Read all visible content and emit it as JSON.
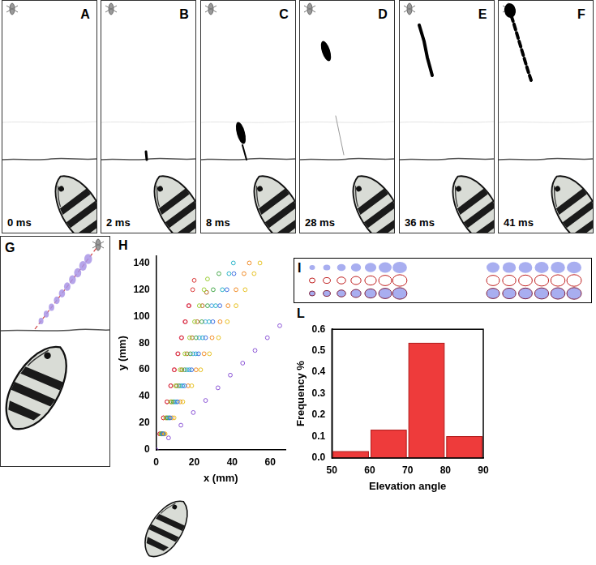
{
  "figure": {
    "frames": [
      {
        "label": "A",
        "time": "0 ms"
      },
      {
        "label": "B",
        "time": "2 ms"
      },
      {
        "label": "C",
        "time": "8 ms"
      },
      {
        "label": "D",
        "time": "28 ms"
      },
      {
        "label": "E",
        "time": "36 ms"
      },
      {
        "label": "F",
        "time": "41 ms"
      }
    ],
    "panel_G": {
      "label": "G"
    },
    "panel_I": {
      "label": "I"
    }
  },
  "chart_data": [
    {
      "type": "scatter",
      "panel_label": "H",
      "x_label": "x (mm)",
      "y_label": "y (mm)",
      "xlim": [
        0,
        68
      ],
      "xticks": [
        0,
        20,
        40,
        60
      ],
      "ylim": [
        0,
        145
      ],
      "yticks": [
        0,
        20,
        40,
        60,
        80,
        100,
        120,
        140
      ],
      "grid": false,
      "marker": "open_circle",
      "series": [
        {
          "color": "#8b55d6",
          "x": [
            0,
            6.5,
            13,
            19.5,
            26,
            32.5,
            39,
            45.5,
            52,
            58.5,
            65
          ],
          "values": [
            0,
            9,
            18.5,
            28,
            37,
            46.5,
            56,
            65,
            74.5,
            84,
            93
          ]
        },
        {
          "color": "#3d6ee0",
          "x": [
            3.7,
            7.4,
            11.2,
            14.9,
            18.6,
            22.3,
            26,
            29.8,
            33.5,
            37.2,
            40.9
          ],
          "values": [
            12,
            24,
            36,
            48,
            60,
            72,
            84,
            96,
            108,
            120,
            132
          ]
        },
        {
          "color": "#e6c020",
          "x": [
            4.7,
            9.4,
            14,
            18.7,
            23.4,
            28,
            32.8,
            37.4,
            42,
            46.8,
            51.5,
            54.6
          ],
          "values": [
            12,
            24,
            36,
            48,
            60,
            72,
            84,
            96,
            108,
            120,
            132,
            140
          ]
        },
        {
          "color": "#f08a24",
          "x": [
            4.2,
            8.4,
            12.6,
            16.8,
            21,
            25.2,
            29.4,
            33.6,
            37.8,
            42,
            46.2,
            49
          ],
          "values": [
            12,
            24,
            36,
            48,
            60,
            72,
            84,
            96,
            108,
            120,
            132,
            140
          ]
        },
        {
          "color": "#27b3c8",
          "x": [
            3.5,
            7,
            10.4,
            13.9,
            17.4,
            20.9,
            24.4,
            27.8,
            31.3,
            34.8,
            38.3,
            40.6
          ],
          "values": [
            12,
            24,
            36,
            48,
            60,
            72,
            84,
            96,
            108,
            120,
            132,
            140
          ]
        },
        {
          "color": "#46a84a",
          "x": [
            3,
            6,
            9,
            12,
            15,
            18,
            21,
            24,
            27,
            30,
            33
          ],
          "values": [
            12,
            24,
            36,
            48,
            60,
            72,
            84,
            96,
            108,
            120,
            132
          ]
        },
        {
          "color": "#9acd32",
          "x": [
            2.5,
            5,
            7.6,
            10.1,
            12.6,
            15.1,
            17.6,
            20.2,
            22.7,
            25.2,
            27
          ],
          "values": [
            12,
            24,
            36,
            48,
            60,
            72,
            84,
            96,
            108,
            120,
            128
          ]
        },
        {
          "color": "#d93636",
          "x": [
            1.9,
            3.8,
            5.7,
            7.7,
            9.6,
            11.5,
            13.4,
            15.4,
            17.3,
            19.2,
            20
          ],
          "values": [
            12,
            24,
            36,
            48,
            60,
            72,
            84,
            96,
            108,
            120,
            127
          ]
        },
        {
          "color": "#e0508c",
          "x": [
            1.9,
            3.8,
            5.7,
            7.6,
            9.4,
            11.3,
            13.2,
            15.1,
            17
          ],
          "values": [
            12,
            24,
            36,
            48,
            60,
            72,
            84,
            96,
            108
          ]
        },
        {
          "color": "#b5651d",
          "x": [
            2.7,
            5.4,
            8.1,
            10.8,
            13.5,
            16.2,
            18.9,
            21.6,
            24.3,
            26.5
          ],
          "values": [
            12,
            24,
            36,
            48,
            60,
            72,
            84,
            96,
            108,
            118
          ]
        },
        {
          "color": "#4aa0e6",
          "x": [
            3.2,
            6.5,
            9.7,
            13,
            16.2,
            19.4,
            22.7,
            25.9,
            29.2
          ],
          "values": [
            12,
            24,
            36,
            48,
            60,
            72,
            84,
            96,
            108
          ]
        }
      ]
    },
    {
      "type": "histogram",
      "panel_label": "L",
      "x_label": "Elevation angle",
      "y_label": "Frequency %",
      "bins": [
        50,
        60,
        70,
        80,
        90
      ],
      "values": [
        0.03,
        0.13,
        0.535,
        0.1
      ],
      "color": "#ee3b3b",
      "xlim": [
        50,
        90
      ],
      "xticks": [
        50,
        60,
        70,
        80,
        90
      ],
      "ylim": [
        0,
        0.6
      ],
      "yticks": [
        {
          "value": 0,
          "label": "0.0"
        },
        {
          "value": 0.1,
          "label": "0.1"
        },
        {
          "value": 0.2,
          "label": "0.2"
        },
        {
          "value": 0.3,
          "label": "0.3"
        },
        {
          "value": 0.4,
          "label": "0.4"
        },
        {
          "value": 0.5,
          "label": "0.5"
        },
        {
          "value": 0.6,
          "label": "0.6"
        }
      ],
      "grid": false
    }
  ]
}
